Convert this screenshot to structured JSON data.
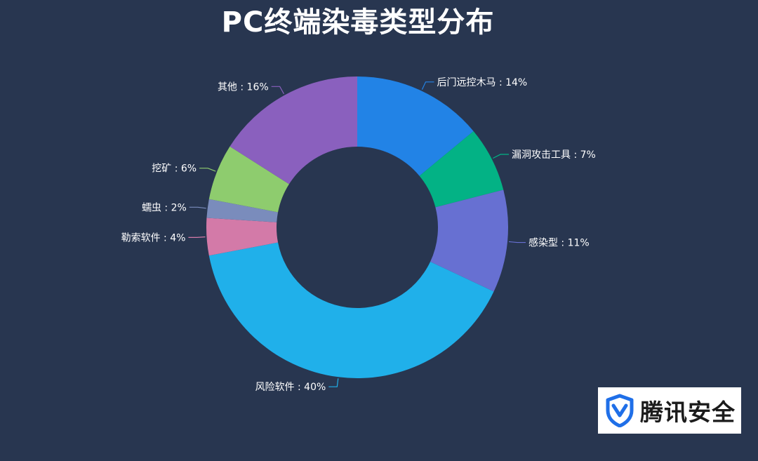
{
  "chart_data": {
    "type": "pie",
    "variant": "donut",
    "title": "PC终端染毒类型分布",
    "label_format": "{name} : {value}%",
    "slices": [
      {
        "name": "后门远控木马",
        "value": 14,
        "color": "#2283e6"
      },
      {
        "name": "漏洞攻击工具",
        "value": 7,
        "color": "#03b285"
      },
      {
        "name": "感染型",
        "value": 11,
        "color": "#6770d2"
      },
      {
        "name": "风险软件",
        "value": 40,
        "color": "#20b0ea"
      },
      {
        "name": "勒索软件",
        "value": 4,
        "color": "#d37aa8"
      },
      {
        "name": "蠕虫",
        "value": 2,
        "color": "#7a8cbc"
      },
      {
        "name": "挖矿",
        "value": 6,
        "color": "#8ecc6e"
      },
      {
        "name": "其他",
        "value": 16,
        "color": "#8a60be"
      }
    ],
    "legend": "none"
  },
  "brand": {
    "name": "腾讯安全",
    "icon": "shield-icon",
    "color": "#1f6fe8"
  }
}
